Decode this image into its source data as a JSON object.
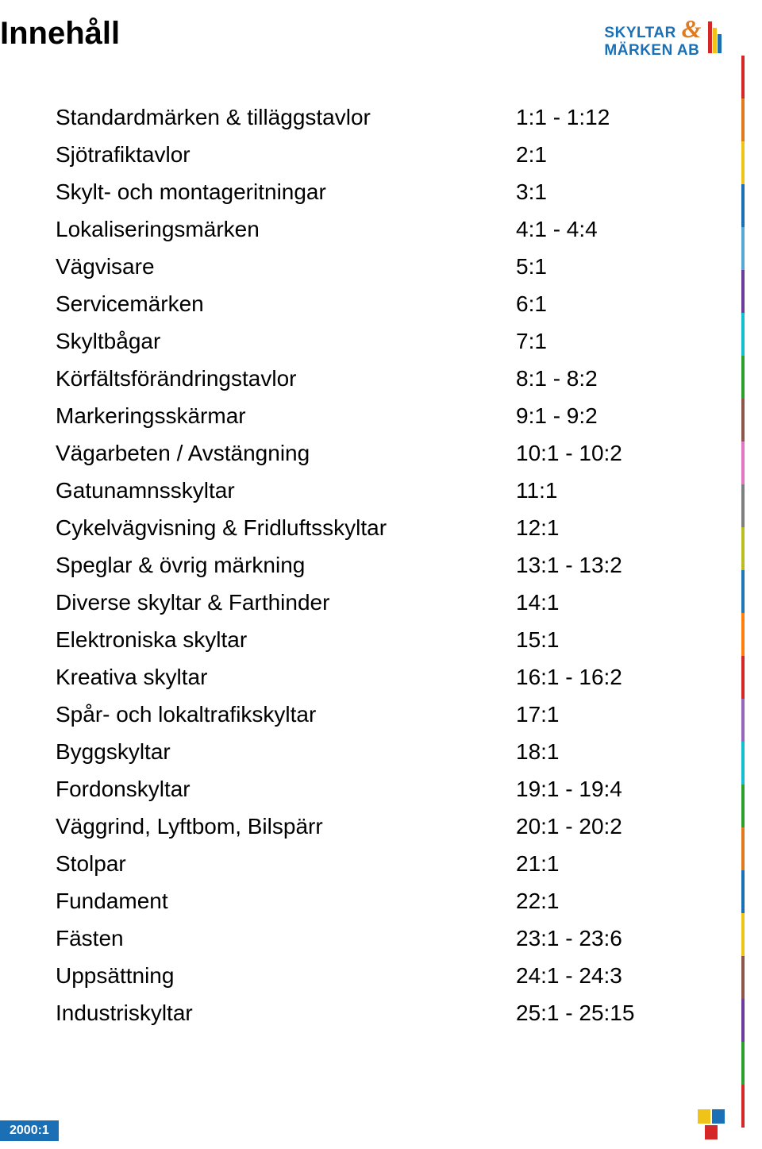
{
  "title": "Innehåll",
  "logo": {
    "line1": "SKYLTAR",
    "and": "&",
    "line2": "MÄRKEN AB",
    "colors": {
      "text": "#1b6fb5",
      "and": "#e07a1f",
      "red": "#d62728",
      "yellow": "#f0c318",
      "blue": "#1b6fb5"
    }
  },
  "toc": {
    "items": [
      {
        "label": "Standardmärken & tilläggstavlor",
        "pages": "1:1 - 1:12"
      },
      {
        "label": "Sjötrafiktavlor",
        "pages": "2:1"
      },
      {
        "label": "Skylt- och montageritningar",
        "pages": "3:1"
      },
      {
        "label": "Lokaliseringsmärken",
        "pages": "4:1 - 4:4"
      },
      {
        "label": "Vägvisare",
        "pages": "5:1"
      },
      {
        "label": "Servicemärken",
        "pages": "6:1"
      },
      {
        "label": "Skyltbågar",
        "pages": "7:1"
      },
      {
        "label": "Körfältsförändringstavlor",
        "pages": "8:1 - 8:2"
      },
      {
        "label": "Markeringsskärmar",
        "pages": "9:1 - 9:2"
      },
      {
        "label": "Vägarbeten / Avstängning",
        "pages": "10:1 - 10:2"
      },
      {
        "label": "Gatunamnsskyltar",
        "pages": "11:1"
      },
      {
        "label": "Cykelvägvisning & Fridluftsskyltar",
        "pages": "12:1"
      },
      {
        "label": "Speglar & övrig märkning",
        "pages": "13:1 - 13:2"
      },
      {
        "label": "Diverse skyltar & Farthinder",
        "pages": "14:1"
      },
      {
        "label": "Elektroniska skyltar",
        "pages": "15:1"
      },
      {
        "label": "Kreativa skyltar",
        "pages": "16:1 - 16:2"
      },
      {
        "label": "Spår- och lokaltrafikskyltar",
        "pages": "17:1"
      },
      {
        "label": "Byggskyltar",
        "pages": "18:1"
      },
      {
        "label": "Fordonskyltar",
        "pages": "19:1 - 19:4"
      },
      {
        "label": "Väggrind, Lyftbom, Bilspärr",
        "pages": "20:1 - 20:2"
      },
      {
        "label": "Stolpar",
        "pages": "21:1"
      },
      {
        "label": "Fundament",
        "pages": "22:1"
      },
      {
        "label": "Fästen",
        "pages": "23:1 - 23:6"
      },
      {
        "label": "Uppsättning",
        "pages": "24:1 - 24:3"
      },
      {
        "label": "Industriskyltar",
        "pages": "25:1 - 25:15"
      }
    ]
  },
  "strip_colors": [
    "#d62728",
    "#e07a1f",
    "#f0c318",
    "#1b6fb5",
    "#5aa8d8",
    "#6a3d9a",
    "#17becf",
    "#2ca02c",
    "#8c564b",
    "#e377c2",
    "#7f7f7f",
    "#bcbd22",
    "#1f77b4",
    "#ff7f0e",
    "#d62728",
    "#9467bd",
    "#17becf",
    "#2ca02c",
    "#e07a1f",
    "#1b6fb5",
    "#f0c318",
    "#8c564b",
    "#6a3d9a",
    "#2ca02c",
    "#d62728"
  ],
  "footer": {
    "page_tag": "2000:1"
  }
}
